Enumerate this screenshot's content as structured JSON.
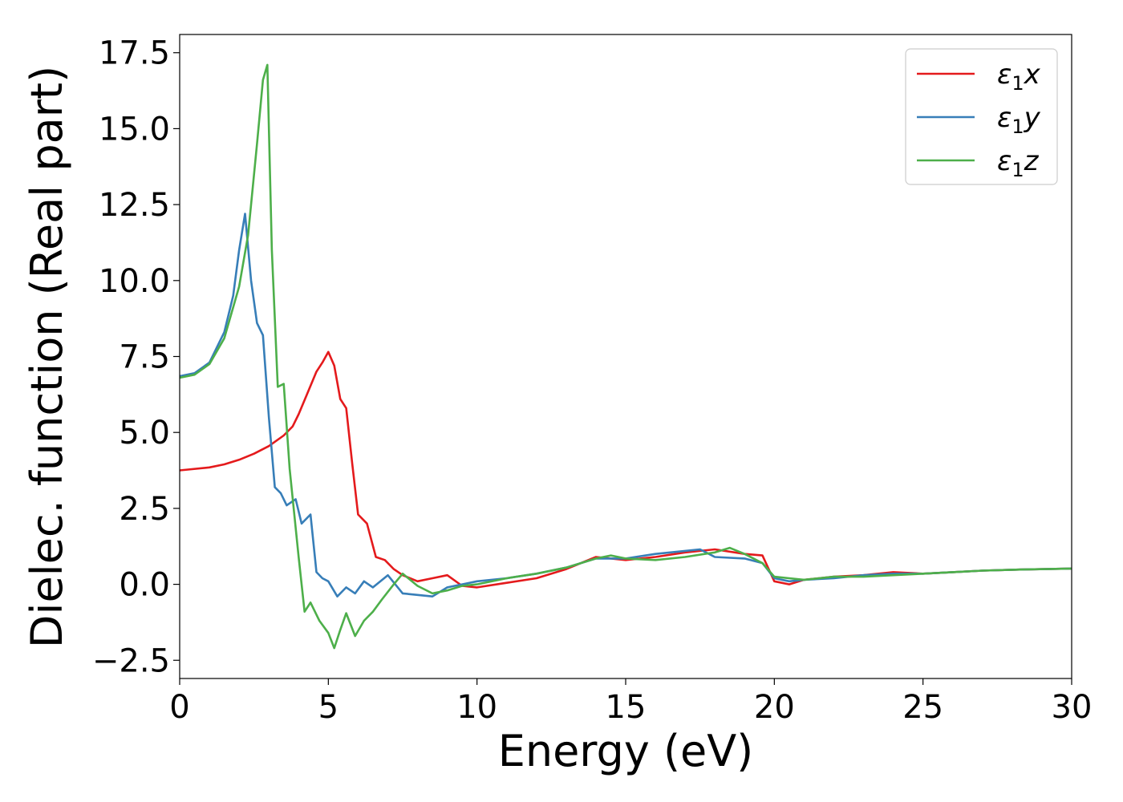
{
  "chart_data": {
    "type": "line",
    "title": "",
    "xlabel": "Energy (eV)",
    "ylabel": "Dielec. function (Real part)",
    "xlim": [
      0,
      30
    ],
    "ylim": [
      -3.1,
      18.1
    ],
    "xticks": [
      0,
      5,
      10,
      15,
      20,
      25,
      30
    ],
    "xtick_labels": [
      "0",
      "5",
      "10",
      "15",
      "20",
      "25",
      "30"
    ],
    "yticks": [
      -2.5,
      0.0,
      2.5,
      5.0,
      7.5,
      10.0,
      12.5,
      15.0,
      17.5
    ],
    "ytick_labels": [
      "−2.5",
      "0.0",
      "2.5",
      "5.0",
      "7.5",
      "10.0",
      "12.5",
      "15.0",
      "17.5"
    ],
    "grid": false,
    "legend_position": "top-right",
    "series": [
      {
        "name": "ε₁x",
        "legend_main": "ε",
        "legend_sub": "1",
        "legend_tail": "x",
        "color": "#e41a1c",
        "x": [
          0,
          1,
          1.5,
          2,
          2.5,
          3,
          3.5,
          3.8,
          4,
          4.3,
          4.6,
          4.8,
          5.0,
          5.2,
          5.4,
          5.6,
          5.8,
          6.0,
          6.3,
          6.6,
          6.9,
          7.2,
          7.5,
          8,
          8.5,
          9,
          9.5,
          10,
          11,
          12,
          13,
          14,
          15,
          16,
          17,
          18,
          19,
          19.6,
          20,
          20.5,
          21,
          22,
          23,
          24,
          25,
          26,
          27,
          28,
          30
        ],
        "y": [
          3.75,
          3.85,
          3.95,
          4.1,
          4.3,
          4.55,
          4.9,
          5.2,
          5.6,
          6.3,
          7.0,
          7.3,
          7.65,
          7.2,
          6.1,
          5.8,
          4.0,
          2.3,
          2.0,
          0.9,
          0.8,
          0.5,
          0.3,
          0.1,
          0.2,
          0.3,
          -0.05,
          -0.1,
          0.05,
          0.2,
          0.5,
          0.9,
          0.8,
          0.9,
          1.05,
          1.15,
          1.0,
          0.95,
          0.1,
          0.0,
          0.15,
          0.25,
          0.3,
          0.4,
          0.35,
          0.4,
          0.45,
          0.48,
          0.52
        ]
      },
      {
        "name": "ε₁y",
        "legend_main": "ε",
        "legend_sub": "1",
        "legend_tail": "y",
        "color": "#377eb8",
        "x": [
          0,
          0.5,
          1,
          1.5,
          1.8,
          2.0,
          2.2,
          2.4,
          2.6,
          2.8,
          3.0,
          3.2,
          3.4,
          3.6,
          3.9,
          4.1,
          4.4,
          4.6,
          4.8,
          5.0,
          5.3,
          5.6,
          5.9,
          6.2,
          6.5,
          7.0,
          7.5,
          8.0,
          8.5,
          9,
          9.5,
          10,
          11,
          12,
          13,
          14,
          15,
          16,
          17,
          17.5,
          18,
          19,
          19.6,
          20,
          20.5,
          21,
          22,
          23,
          24,
          25,
          26,
          27,
          28,
          30
        ],
        "y": [
          6.85,
          6.95,
          7.3,
          8.3,
          9.5,
          11.0,
          12.2,
          10.0,
          8.6,
          8.2,
          5.5,
          3.2,
          3.0,
          2.6,
          2.8,
          2.0,
          2.3,
          0.4,
          0.2,
          0.1,
          -0.4,
          -0.1,
          -0.3,
          0.1,
          -0.1,
          0.3,
          -0.3,
          -0.35,
          -0.4,
          -0.1,
          0.0,
          0.1,
          0.2,
          0.35,
          0.55,
          0.85,
          0.85,
          1.0,
          1.1,
          1.15,
          0.9,
          0.85,
          0.7,
          0.2,
          0.1,
          0.15,
          0.2,
          0.3,
          0.35,
          0.35,
          0.4,
          0.45,
          0.48,
          0.52
        ]
      },
      {
        "name": "ε₁z",
        "legend_main": "ε",
        "legend_sub": "1",
        "legend_tail": "z",
        "color": "#4daf4a",
        "x": [
          0,
          0.5,
          1,
          1.5,
          2.0,
          2.3,
          2.6,
          2.8,
          2.95,
          3.1,
          3.3,
          3.5,
          3.7,
          4.0,
          4.2,
          4.4,
          4.7,
          5.0,
          5.2,
          5.4,
          5.6,
          5.9,
          6.2,
          6.5,
          6.8,
          7.2,
          7.5,
          8.0,
          8.5,
          9,
          9.5,
          10,
          11,
          12,
          13,
          14,
          14.5,
          15,
          16,
          17,
          18,
          18.5,
          19,
          19.6,
          20,
          20.5,
          21,
          22,
          23,
          24,
          25,
          26,
          27,
          28,
          30
        ],
        "y": [
          6.8,
          6.9,
          7.25,
          8.1,
          9.8,
          11.5,
          14.5,
          16.6,
          17.1,
          11.0,
          6.5,
          6.6,
          3.8,
          0.9,
          -0.9,
          -0.6,
          -1.2,
          -1.6,
          -2.1,
          -1.5,
          -0.95,
          -1.7,
          -1.2,
          -0.9,
          -0.5,
          0.0,
          0.35,
          -0.05,
          -0.3,
          -0.2,
          -0.05,
          0.0,
          0.2,
          0.35,
          0.55,
          0.85,
          0.95,
          0.85,
          0.8,
          0.9,
          1.05,
          1.2,
          1.0,
          0.7,
          0.25,
          0.2,
          0.15,
          0.25,
          0.25,
          0.3,
          0.35,
          0.4,
          0.45,
          0.48,
          0.52
        ]
      }
    ]
  }
}
